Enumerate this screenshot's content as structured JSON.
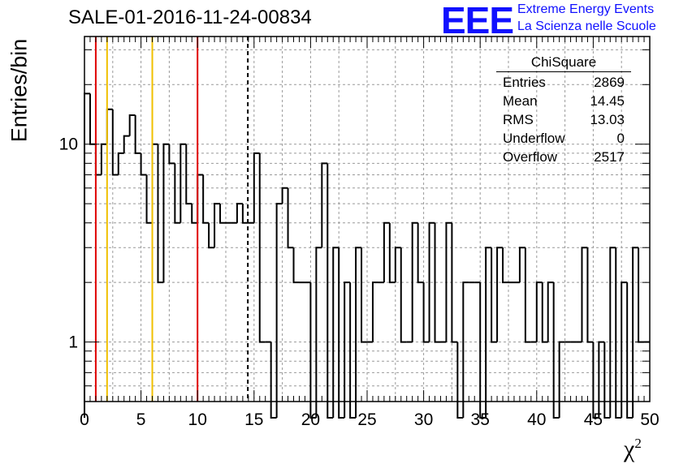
{
  "title": "SALE-01-2016-11-24-00834",
  "logo": {
    "mark": "EEE",
    "line1": "Extreme Energy Events",
    "line2": "La Scienza nelle Scuole"
  },
  "colors": {
    "histogram": "#000000",
    "red_lines": "#e00000",
    "yellow_lines": "#f0c000",
    "logo": "#1010ff",
    "grid": "#999999"
  },
  "stats": {
    "title": "ChiSquare",
    "rows": [
      {
        "label": "Entries",
        "value": "2869"
      },
      {
        "label": "Mean",
        "value": "14.45"
      },
      {
        "label": "RMS",
        "value": "13.03"
      },
      {
        "label": "Underflow",
        "value": "0"
      },
      {
        "label": "Overflow",
        "value": "2517"
      }
    ]
  },
  "chart_data": {
    "type": "histogram",
    "ylabel": "Entries/bin",
    "xlabel": "χ",
    "xlabel_sup": "2",
    "xlim": [
      0,
      50
    ],
    "ylim": [
      0.5,
      35
    ],
    "yscale": "log",
    "grid": true,
    "bin_width": 0.5,
    "x_ticks": [
      "0",
      "5",
      "10",
      "15",
      "20",
      "25",
      "30",
      "35",
      "40",
      "45",
      "50"
    ],
    "y_ticks": [
      {
        "value": 1,
        "label": "1"
      },
      {
        "value": 10,
        "label": "10"
      }
    ],
    "values": [
      18,
      10,
      7,
      10,
      15,
      7,
      9,
      11,
      14,
      9,
      7,
      4,
      10,
      2,
      10,
      8,
      4,
      10,
      5,
      4,
      7,
      4,
      3,
      5,
      4,
      4,
      4,
      5,
      4,
      4,
      9,
      1,
      1,
      0,
      5,
      6,
      3,
      2,
      2,
      2,
      0,
      3,
      8,
      0,
      3,
      0,
      2,
      0,
      3,
      1,
      1,
      2,
      2,
      4,
      2,
      3,
      1,
      1,
      4,
      2,
      1,
      4,
      1,
      1,
      4,
      1,
      0,
      2,
      2,
      2,
      0,
      3,
      1,
      3,
      2,
      2,
      2,
      3,
      1,
      1,
      2,
      1,
      2,
      0,
      1,
      1,
      1,
      1,
      3,
      1,
      0,
      1,
      0,
      3,
      0,
      2,
      0,
      3,
      1,
      1
    ],
    "vertical_lines": [
      {
        "x": 1,
        "color": "red",
        "style": "solid"
      },
      {
        "x": 2,
        "color": "yellow",
        "style": "solid"
      },
      {
        "x": 6,
        "color": "yellow",
        "style": "solid"
      },
      {
        "x": 10,
        "color": "red",
        "style": "solid"
      },
      {
        "x": 14.45,
        "color": "black",
        "style": "dashed"
      }
    ]
  }
}
